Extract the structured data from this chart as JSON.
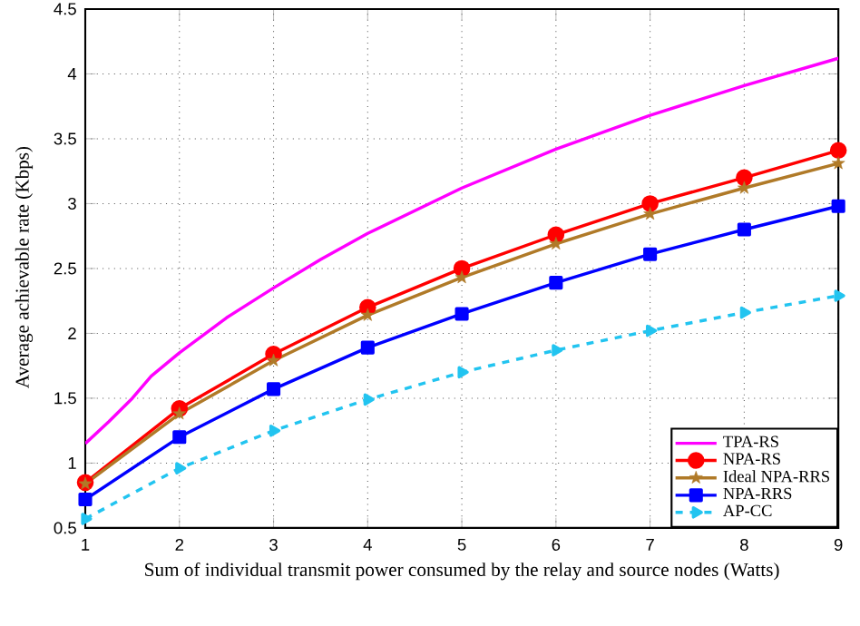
{
  "chart_data": {
    "type": "line",
    "xlabel": "Sum of individual transmit power consumed by the relay and source nodes (Watts)",
    "ylabel": "Average achievable rate (Kbps)",
    "x": [
      1,
      2,
      3,
      4,
      5,
      6,
      7,
      8,
      9
    ],
    "xlim": [
      1,
      9
    ],
    "xticks": [
      1,
      2,
      3,
      4,
      5,
      6,
      7,
      8,
      9
    ],
    "ylim": [
      0.5,
      4.5
    ],
    "yticks": [
      0.5,
      1,
      1.5,
      2,
      2.5,
      3,
      3.5,
      4,
      4.5
    ],
    "grid": true,
    "legend": "bottom right",
    "series": [
      {
        "name": "TPA-RS",
        "color": "#ff00ff",
        "marker": "none",
        "line_style": "solid",
        "x": [
          1,
          1.25,
          1.5,
          1.7,
          2,
          2.5,
          3,
          3.5,
          4,
          5,
          6,
          7,
          8,
          9
        ],
        "values": [
          1.15,
          1.32,
          1.5,
          1.67,
          1.85,
          2.12,
          2.35,
          2.57,
          2.77,
          3.12,
          3.42,
          3.68,
          3.91,
          4.12
        ]
      },
      {
        "name": "NPA-RS",
        "color": "#ff0000",
        "marker": "circle",
        "line_style": "solid",
        "values": [
          0.85,
          1.42,
          1.84,
          2.2,
          2.5,
          2.76,
          3.0,
          3.2,
          3.41
        ]
      },
      {
        "name": "Ideal NPA-RRS",
        "color": "#b07a28",
        "marker": "star",
        "line_style": "solid",
        "values": [
          0.84,
          1.38,
          1.79,
          2.14,
          2.43,
          2.69,
          2.92,
          3.12,
          3.31
        ]
      },
      {
        "name": "NPA-RRS",
        "color": "#0000ff",
        "marker": "square",
        "line_style": "solid",
        "values": [
          0.72,
          1.2,
          1.57,
          1.89,
          2.15,
          2.39,
          2.61,
          2.8,
          2.98
        ]
      },
      {
        "name": "AP-CC",
        "color": "#22c4f0",
        "marker": "triangle",
        "line_style": "dashed",
        "values": [
          0.57,
          0.96,
          1.25,
          1.49,
          1.7,
          1.87,
          2.02,
          2.16,
          2.29
        ]
      }
    ]
  }
}
